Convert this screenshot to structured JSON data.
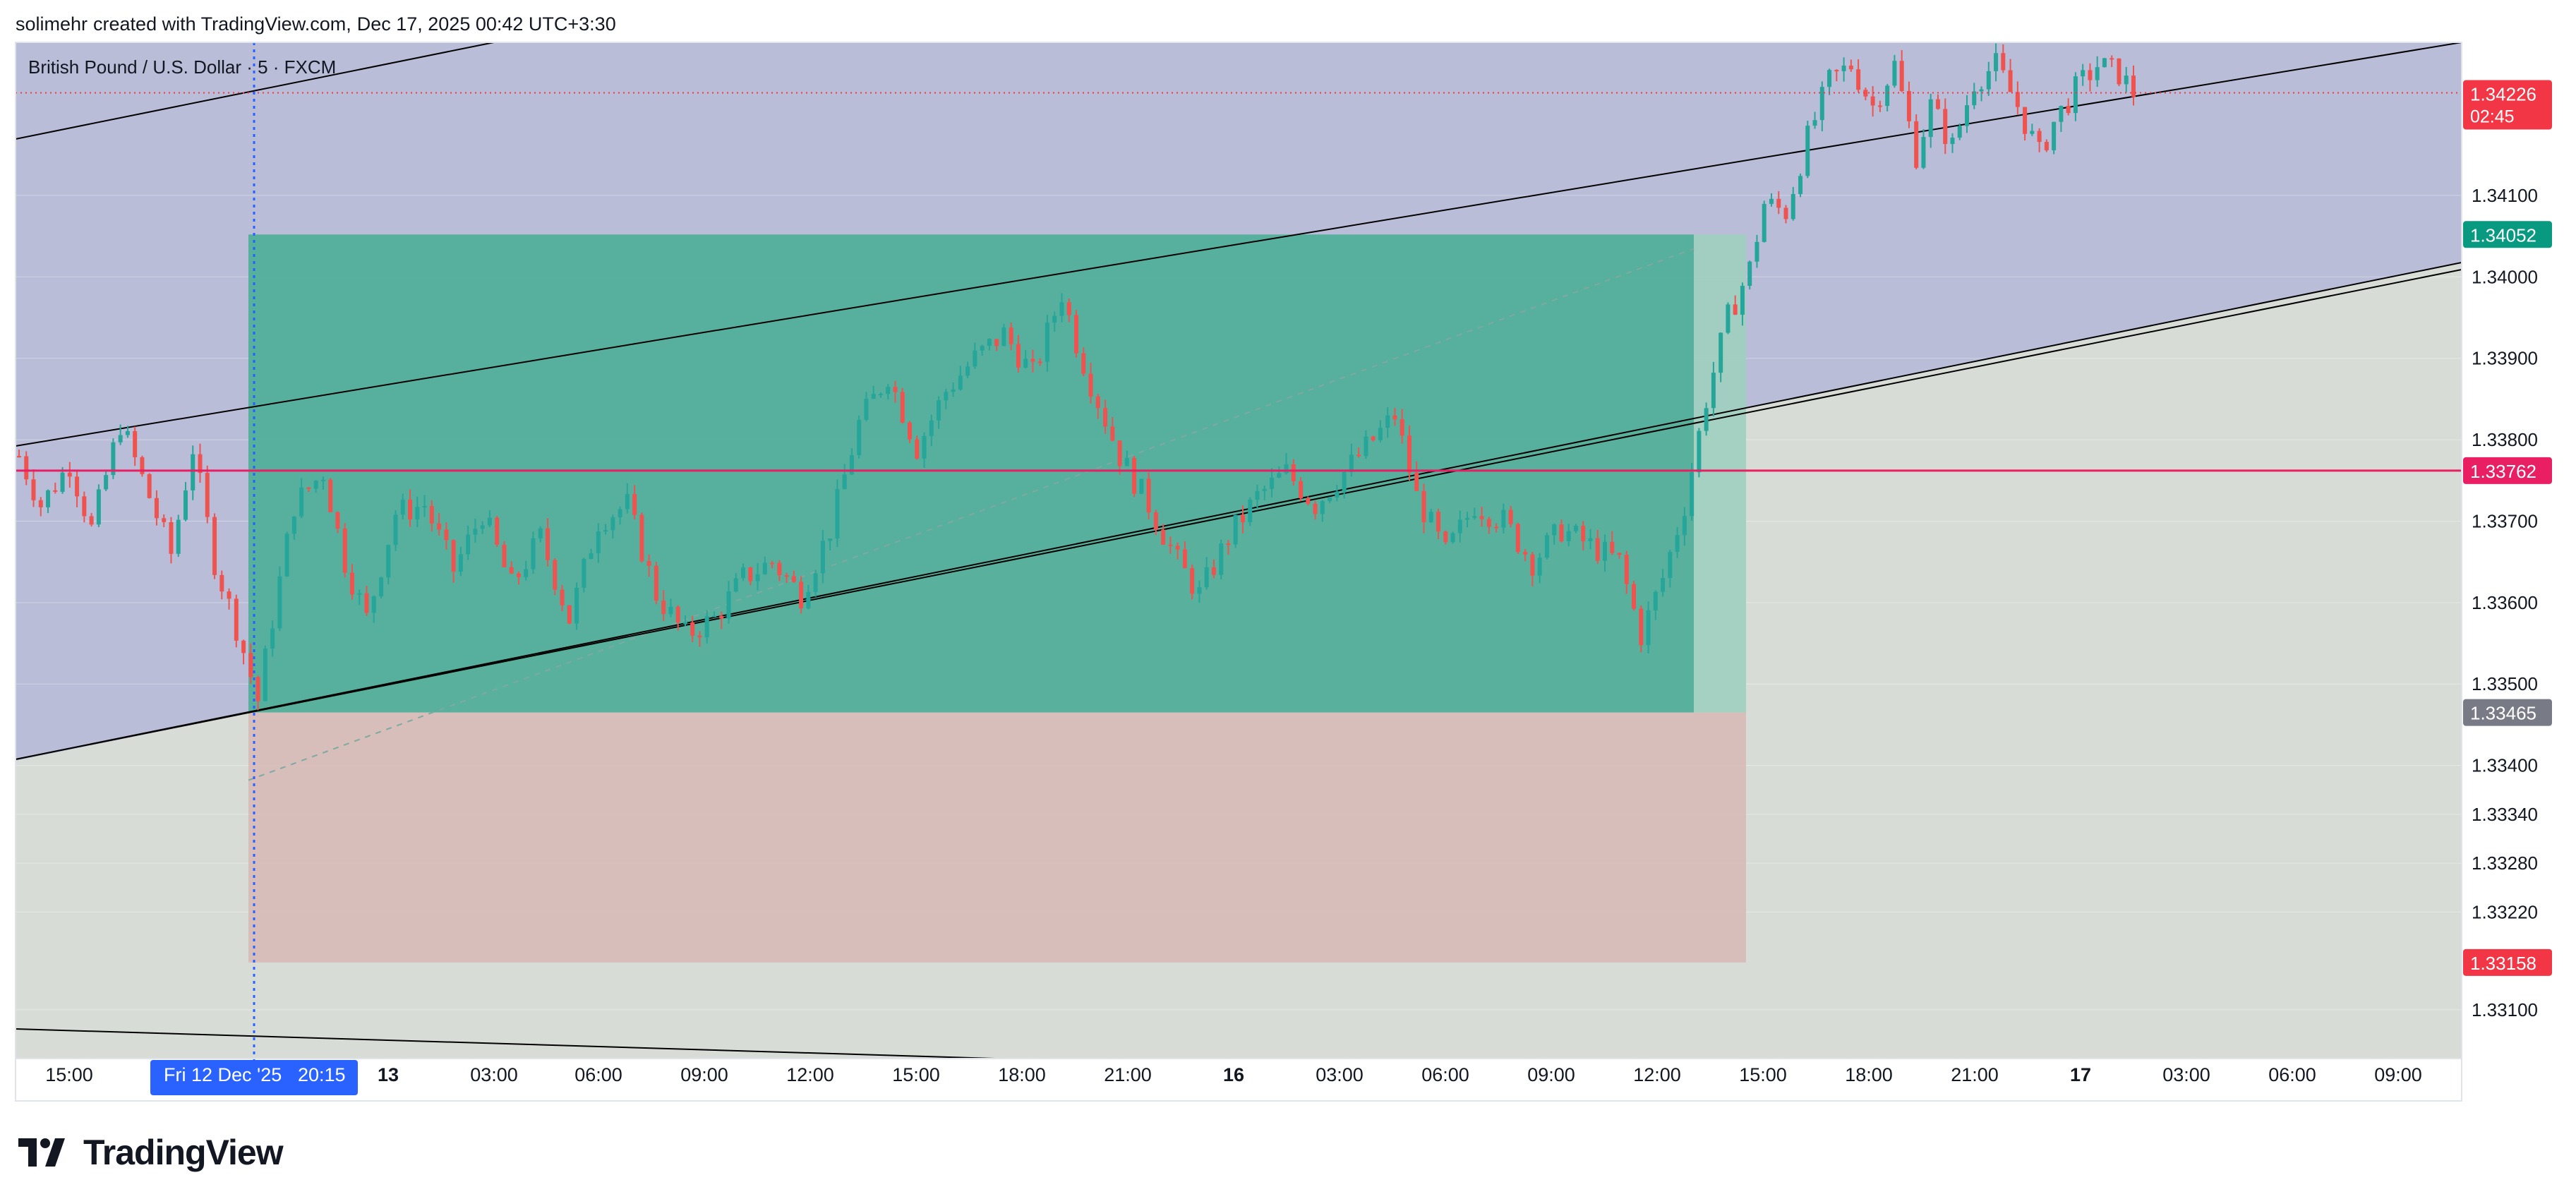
{
  "header": {
    "author": "solimehr",
    "created_with": "created with TradingView.com,",
    "date": "Dec 17, 2025 00:42 UTC+3:30"
  },
  "symbol": {
    "name": "British Pound / U.S. Dollar",
    "interval": "5",
    "exchange": "FXCM"
  },
  "brand": {
    "name": "TradingView",
    "logo_icon": "tradingview-logo-icon"
  },
  "colors": {
    "up": "#26a69a",
    "down": "#ef5350",
    "current_price": "#f23645",
    "horizontal_line": "#e91e63",
    "target_zone": "#3aa38f",
    "stop_zone": "#d7b9b6",
    "channel_fill": "#b9bdd8",
    "lower_fill": "#d7ddd6",
    "crosshair": "#2962ff",
    "entry_label": "#787b86"
  },
  "chart_data": {
    "type": "candlestick",
    "symbol": "British Pound / U.S. Dollar",
    "ylim": [
      1.3304,
      1.34288
    ],
    "price_scale_ticks": [
      "1.34100",
      "1.34000",
      "1.33900",
      "1.33800",
      "1.33700",
      "1.33600",
      "1.33500",
      "1.33400",
      "1.33340",
      "1.33280",
      "1.33220",
      "1.33100"
    ],
    "time_axis_labels": [
      "15:00",
      "13",
      "03:00",
      "06:00",
      "09:00",
      "12:00",
      "15:00",
      "18:00",
      "21:00",
      "16",
      "03:00",
      "06:00",
      "09:00",
      "12:00",
      "15:00",
      "18:00",
      "21:00",
      "17",
      "03:00",
      "06:00",
      "09:00"
    ],
    "time_axis_bold": [
      "13",
      "16",
      "17"
    ],
    "crosshair_time_label": "Fri 12 Dec '25",
    "crosshair_time_value": "20:15",
    "price_labels": [
      {
        "value": "1.34226",
        "sub": "02:45",
        "kind": "current"
      },
      {
        "value": "1.34052",
        "kind": "target"
      },
      {
        "value": "1.33762",
        "kind": "line"
      },
      {
        "value": "1.33465",
        "kind": "entry"
      },
      {
        "value": "1.33158",
        "kind": "stop"
      }
    ],
    "current_price": 1.34226,
    "horizontal_line_price": 1.33762,
    "long_position": {
      "entry": 1.33465,
      "target": 1.34052,
      "stop": 1.33158
    },
    "price_path": [
      {
        "t": 0,
        "p": 1.3378
      },
      {
        "t": 3,
        "p": 1.3372
      },
      {
        "t": 7,
        "p": 1.3377
      },
      {
        "t": 10,
        "p": 1.3369
      },
      {
        "t": 14,
        "p": 1.3382
      },
      {
        "t": 18,
        "p": 1.3373
      },
      {
        "t": 21,
        "p": 1.3366
      },
      {
        "t": 24,
        "p": 1.3379
      },
      {
        "t": 27,
        "p": 1.3365
      },
      {
        "t": 30,
        "p": 1.3357
      },
      {
        "t": 33,
        "p": 1.3348
      },
      {
        "t": 35,
        "p": 1.3358
      },
      {
        "t": 38,
        "p": 1.3372
      },
      {
        "t": 42,
        "p": 1.3376
      },
      {
        "t": 45,
        "p": 1.3365
      },
      {
        "t": 48,
        "p": 1.3358
      },
      {
        "t": 52,
        "p": 1.3371
      },
      {
        "t": 56,
        "p": 1.3372
      },
      {
        "t": 60,
        "p": 1.3364
      },
      {
        "t": 64,
        "p": 1.3371
      },
      {
        "t": 68,
        "p": 1.3362
      },
      {
        "t": 72,
        "p": 1.3368
      },
      {
        "t": 76,
        "p": 1.3358
      },
      {
        "t": 80,
        "p": 1.337
      },
      {
        "t": 84,
        "p": 1.3372
      },
      {
        "t": 88,
        "p": 1.3361
      },
      {
        "t": 92,
        "p": 1.3356
      },
      {
        "t": 96,
        "p": 1.3358
      },
      {
        "t": 100,
        "p": 1.3363
      },
      {
        "t": 104,
        "p": 1.3365
      },
      {
        "t": 108,
        "p": 1.3361
      },
      {
        "t": 112,
        "p": 1.3369
      },
      {
        "t": 116,
        "p": 1.3382
      },
      {
        "t": 120,
        "p": 1.3388
      },
      {
        "t": 124,
        "p": 1.3379
      },
      {
        "t": 128,
        "p": 1.3386
      },
      {
        "t": 132,
        "p": 1.339
      },
      {
        "t": 136,
        "p": 1.3393
      },
      {
        "t": 140,
        "p": 1.3388
      },
      {
        "t": 144,
        "p": 1.3398
      },
      {
        "t": 146,
        "p": 1.3392
      },
      {
        "t": 148,
        "p": 1.3387
      },
      {
        "t": 152,
        "p": 1.3378
      },
      {
        "t": 156,
        "p": 1.3372
      },
      {
        "t": 160,
        "p": 1.3365
      },
      {
        "t": 163,
        "p": 1.3361
      },
      {
        "t": 167,
        "p": 1.3368
      },
      {
        "t": 171,
        "p": 1.3373
      },
      {
        "t": 175,
        "p": 1.3376
      },
      {
        "t": 179,
        "p": 1.3372
      },
      {
        "t": 183,
        "p": 1.3376
      },
      {
        "t": 187,
        "p": 1.338
      },
      {
        "t": 190,
        "p": 1.3383
      },
      {
        "t": 193,
        "p": 1.3373
      },
      {
        "t": 197,
        "p": 1.3366
      },
      {
        "t": 201,
        "p": 1.3372
      },
      {
        "t": 205,
        "p": 1.337
      },
      {
        "t": 209,
        "p": 1.3365
      },
      {
        "t": 213,
        "p": 1.3369
      },
      {
        "t": 217,
        "p": 1.3367
      },
      {
        "t": 221,
        "p": 1.3365
      },
      {
        "t": 224,
        "p": 1.3356
      },
      {
        "t": 227,
        "p": 1.3363
      },
      {
        "t": 230,
        "p": 1.3372
      },
      {
        "t": 233,
        "p": 1.3385
      },
      {
        "t": 236,
        "p": 1.3395
      },
      {
        "t": 239,
        "p": 1.3401
      },
      {
        "t": 241,
        "p": 1.3409
      },
      {
        "t": 244,
        "p": 1.3408
      },
      {
        "t": 247,
        "p": 1.3417
      },
      {
        "t": 250,
        "p": 1.3424
      },
      {
        "t": 253,
        "p": 1.3426
      },
      {
        "t": 256,
        "p": 1.3421
      },
      {
        "t": 259,
        "p": 1.3426
      },
      {
        "t": 262,
        "p": 1.3415
      },
      {
        "t": 264,
        "p": 1.3421
      },
      {
        "t": 267,
        "p": 1.3416
      },
      {
        "t": 270,
        "p": 1.3424
      },
      {
        "t": 273,
        "p": 1.3426
      },
      {
        "t": 276,
        "p": 1.3421
      },
      {
        "t": 279,
        "p": 1.3415
      },
      {
        "t": 281,
        "p": 1.3419
      },
      {
        "t": 284,
        "p": 1.3423
      },
      {
        "t": 287,
        "p": 1.3426
      },
      {
        "t": 290,
        "p": 1.3425
      },
      {
        "t": 292,
        "p": 1.34226
      }
    ]
  }
}
